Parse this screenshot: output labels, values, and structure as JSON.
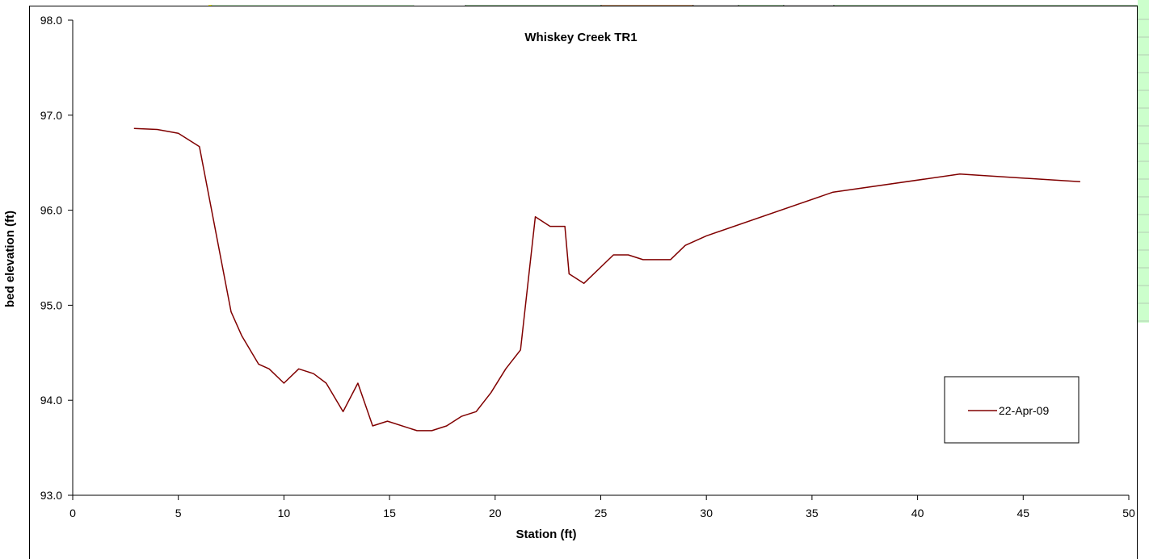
{
  "colors": {
    "series_line": "#800000",
    "axis": "#000000",
    "cell_green": "#ccffcc",
    "cell_orange": "#fac090",
    "cell_yellow": "#ffff00",
    "grid_line": "#c0c0c0"
  },
  "chart_data": {
    "type": "line",
    "title": "Whiskey Creek TR1",
    "xlabel": "Station (ft)",
    "ylabel": "bed elevation (ft)",
    "xlim": [
      0,
      50
    ],
    "ylim": [
      93.0,
      98.0
    ],
    "x_ticks": [
      0,
      5,
      10,
      15,
      20,
      25,
      30,
      35,
      40,
      45,
      50
    ],
    "y_ticks": [
      "93.0",
      "94.0",
      "95.0",
      "96.0",
      "97.0",
      "98.0"
    ],
    "grid": false,
    "legend_position": "lower-right",
    "series": [
      {
        "name": "22-Apr-09",
        "x": [
          2.9,
          4.0,
          5.0,
          6.0,
          7.5,
          8.0,
          8.8,
          9.3,
          10.0,
          10.7,
          11.4,
          12.0,
          12.8,
          13.5,
          14.2,
          14.9,
          16.3,
          17.0,
          17.7,
          18.4,
          19.1,
          19.8,
          20.5,
          21.2,
          21.9,
          22.6,
          23.3,
          23.5,
          24.2,
          25.6,
          26.3,
          27.0,
          28.3,
          29.0,
          30.0,
          36.0,
          42.0,
          47.7
        ],
        "y": [
          96.86,
          96.85,
          96.81,
          96.67,
          94.93,
          94.68,
          94.38,
          94.33,
          94.18,
          94.33,
          94.28,
          94.18,
          93.88,
          94.18,
          93.73,
          93.78,
          93.68,
          93.68,
          93.73,
          93.83,
          93.88,
          94.08,
          94.33,
          94.53,
          95.93,
          95.83,
          95.83,
          95.33,
          95.23,
          95.53,
          95.53,
          95.48,
          95.48,
          95.63,
          95.73,
          96.19,
          96.38,
          96.3
        ]
      }
    ]
  }
}
